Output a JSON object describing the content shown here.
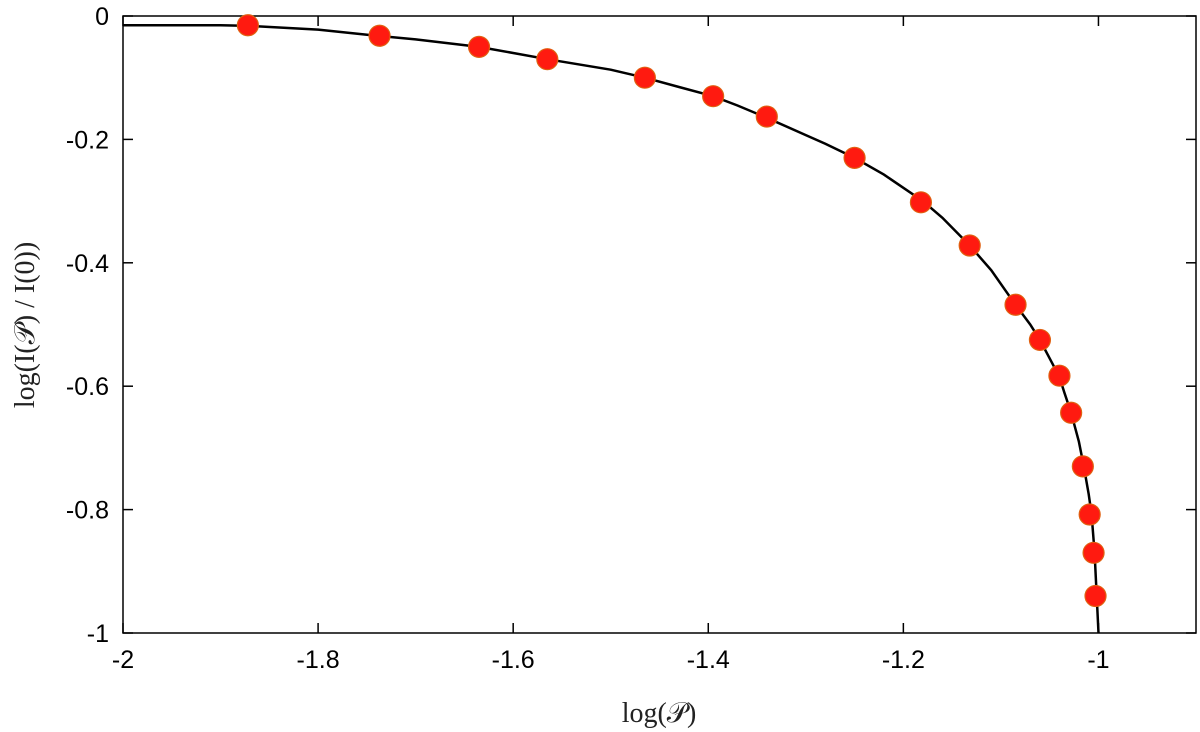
{
  "chart_data": {
    "type": "scatter",
    "title": "",
    "xlabel": "log(𝒫)",
    "ylabel": "log(I(𝒫) / I(0))",
    "xlim": [
      -2,
      -0.9
    ],
    "ylim": [
      -1,
      0
    ],
    "xticks": [
      -2,
      -1.8,
      -1.6,
      -1.4,
      -1.2,
      -1
    ],
    "xtick_labels": [
      "-2",
      "-1.8",
      "-1.6",
      "-1.4",
      "-1.2",
      "-1"
    ],
    "yticks": [
      0,
      -0.2,
      -0.4,
      -0.6,
      -0.8,
      -1
    ],
    "ytick_labels": [
      "0",
      "-0.2",
      "-0.4",
      "-0.6",
      "-0.8",
      "-1"
    ],
    "grid": false,
    "series": [
      {
        "kind": "line",
        "color": "#000000",
        "x": [
          -2.0,
          -1.9,
          -1.87,
          -1.8,
          -1.74,
          -1.7,
          -1.635,
          -1.6,
          -1.565,
          -1.5,
          -1.465,
          -1.43,
          -1.395,
          -1.37,
          -1.34,
          -1.3,
          -1.28,
          -1.25,
          -1.22,
          -1.18,
          -1.16,
          -1.132,
          -1.11,
          -1.085,
          -1.07,
          -1.06,
          -1.05,
          -1.04,
          -1.035,
          -1.028,
          -1.02,
          -1.015,
          -1.01,
          -1.007,
          -1.004,
          -1.0
        ],
        "y": [
          -0.015,
          -0.015,
          -0.016,
          -0.022,
          -0.032,
          -0.038,
          -0.05,
          -0.06,
          -0.07,
          -0.087,
          -0.1,
          -0.115,
          -0.13,
          -0.145,
          -0.165,
          -0.193,
          -0.207,
          -0.23,
          -0.257,
          -0.3,
          -0.327,
          -0.372,
          -0.412,
          -0.468,
          -0.5,
          -0.525,
          -0.555,
          -0.585,
          -0.61,
          -0.643,
          -0.69,
          -0.73,
          -0.775,
          -0.808,
          -0.87,
          -1.0
        ]
      },
      {
        "kind": "scatter",
        "color": "#ff1a10",
        "x": [
          -1.872,
          -1.737,
          -1.635,
          -1.565,
          -1.465,
          -1.395,
          -1.34,
          -1.25,
          -1.182,
          -1.132,
          -1.085,
          -1.06,
          -1.04,
          -1.028,
          -1.016,
          -1.009,
          -1.005,
          -1.003
        ],
        "y": [
          -0.015,
          -0.032,
          -0.05,
          -0.07,
          -0.1,
          -0.13,
          -0.163,
          -0.23,
          -0.302,
          -0.372,
          -0.468,
          -0.525,
          -0.583,
          -0.643,
          -0.73,
          -0.808,
          -0.87,
          -0.94
        ]
      }
    ]
  }
}
